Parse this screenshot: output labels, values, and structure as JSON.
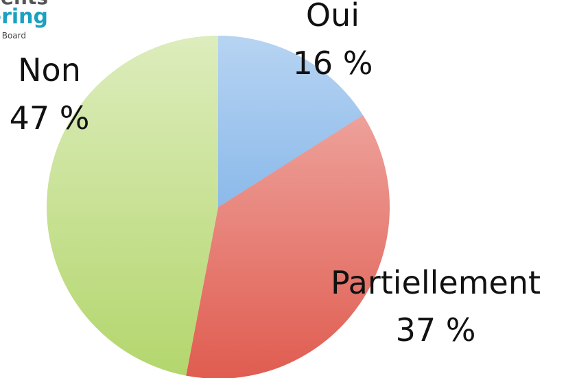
{
  "logo_text": [
    "ments",
    "ering",
    "Board"
  ],
  "chart_data": {
    "type": "pie",
    "categories": [
      "Oui",
      "Partiellement",
      "Non"
    ],
    "values": [
      16,
      37,
      47
    ],
    "value_labels": [
      "16 %",
      "37 %",
      "47 %"
    ],
    "colors": [
      "#5f9fe2",
      "#e05c50",
      "#b3d66c"
    ]
  }
}
